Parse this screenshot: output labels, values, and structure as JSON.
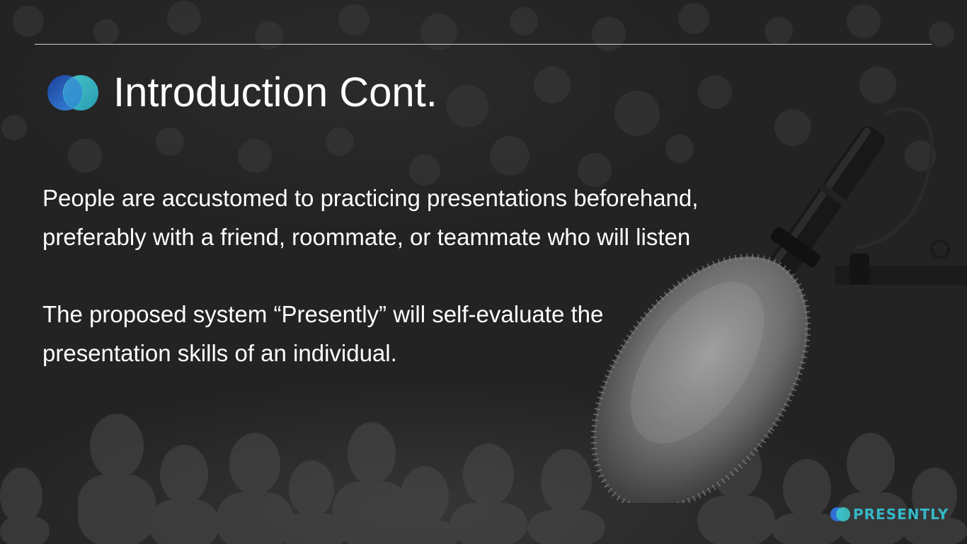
{
  "slide": {
    "title": "Introduction Cont.",
    "paragraphs": [
      "People are accustomed to practicing presentations beforehand, preferably with a friend, roommate, or teammate who will listen",
      "The proposed system “Presently” will self-evaluate the presentation skills of an individual."
    ],
    "brand_name": "PRESENTLY"
  },
  "icons": {
    "title_logo": "presently-logo-icon",
    "background_image": "microphone-audience-photo"
  },
  "colors": {
    "background": "#232323",
    "text": "#ffffff",
    "logo_blue": "#2f6fd6",
    "logo_teal": "#3cc7c7",
    "brand_text": "#35b8c9"
  }
}
